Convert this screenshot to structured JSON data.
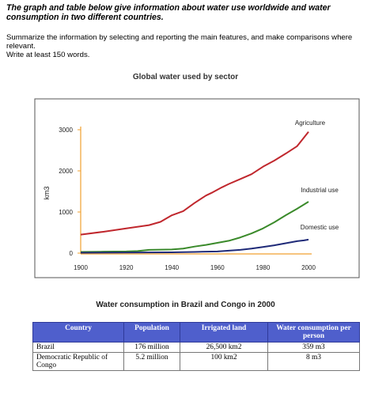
{
  "task": {
    "title": "The graph and table below give information about water use worldwide and water consumption in two different countries.",
    "instructions": [
      "Summarize the information by selecting and reporting the main features, and make comparisons where relevant.",
      "Write at least 150 words."
    ]
  },
  "chart_title": "Global water used by sector",
  "table_title": "Water consumption in Brazil and Congo in 2000",
  "chart_data": {
    "type": "line",
    "title": "Global water used by sector",
    "xlabel": "",
    "ylabel": "km3",
    "xlim": [
      1900,
      2000
    ],
    "ylim": [
      0,
      3000
    ],
    "xticks": [
      1900,
      1920,
      1940,
      1960,
      1980,
      2000
    ],
    "yticks": [
      0,
      1000,
      2000,
      3000
    ],
    "grid": false,
    "colors": {
      "Agriculture": "#c0272d",
      "Industrial use": "#3a8a2a",
      "Domestic use": "#1f2a78",
      "axis": "#f0a030"
    },
    "series": [
      {
        "name": "Agriculture",
        "x": [
          1900,
          1910,
          1920,
          1930,
          1935,
          1940,
          1945,
          1950,
          1955,
          1958,
          1962,
          1965,
          1970,
          1975,
          1980,
          1985,
          1990,
          1995,
          2000
        ],
        "values": [
          450,
          520,
          600,
          680,
          760,
          920,
          1020,
          1220,
          1400,
          1480,
          1600,
          1680,
          1800,
          1920,
          2100,
          2250,
          2420,
          2600,
          2950
        ]
      },
      {
        "name": "Industrial use",
        "x": [
          1900,
          1910,
          1920,
          1925,
          1930,
          1940,
          1945,
          1950,
          1955,
          1960,
          1965,
          1970,
          1975,
          1980,
          1985,
          1990,
          1995,
          2000
        ],
        "values": [
          30,
          35,
          40,
          50,
          80,
          90,
          110,
          160,
          200,
          250,
          300,
          380,
          480,
          600,
          750,
          920,
          1080,
          1250
        ]
      },
      {
        "name": "Domestic use",
        "x": [
          1900,
          1920,
          1940,
          1950,
          1960,
          1965,
          1970,
          1975,
          1980,
          1985,
          1990,
          1995,
          1998,
          2000
        ],
        "values": [
          10,
          15,
          20,
          30,
          40,
          60,
          80,
          110,
          150,
          190,
          240,
          290,
          310,
          330
        ]
      }
    ]
  },
  "table": {
    "headers": [
      "Country",
      "Population",
      "Irrigated land",
      "Water consumption per person"
    ],
    "rows": [
      [
        "Brazil",
        "176 million",
        "26,500 km2",
        "359 m3"
      ],
      [
        "Democratic Republic of Congo",
        "5.2 million",
        "100 km2",
        "8 m3"
      ]
    ]
  }
}
